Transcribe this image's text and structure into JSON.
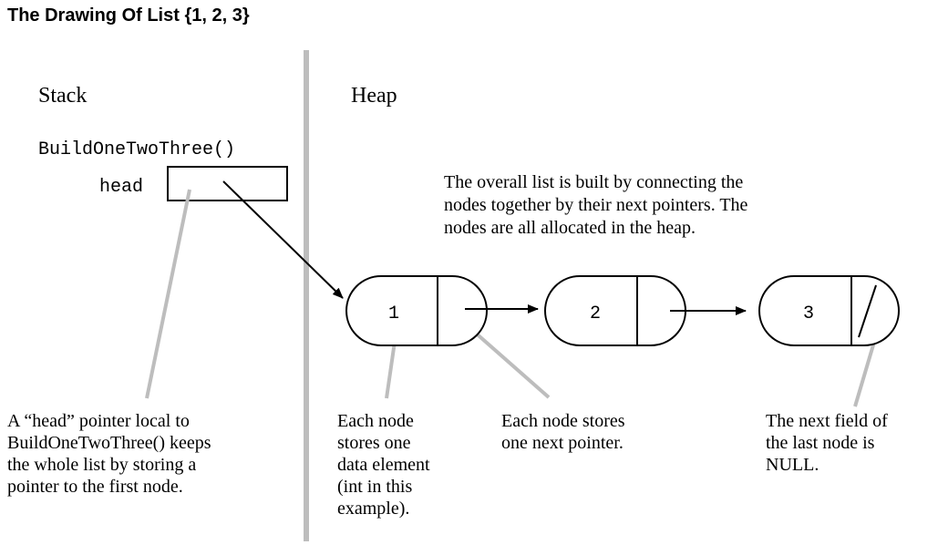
{
  "title": "The Drawing Of List {1, 2, 3}",
  "stack": {
    "label": "Stack",
    "function_name": "BuildOneTwoThree()",
    "head_label": "head"
  },
  "heap": {
    "label": "Heap",
    "description": [
      "The overall list is built by connecting the",
      "nodes together by their next pointers. The",
      "nodes are all allocated in the heap."
    ]
  },
  "nodes": [
    {
      "data": "1"
    },
    {
      "data": "2"
    },
    {
      "data": "3"
    }
  ],
  "annotations": {
    "head_pointer": [
      "A “head” pointer local to",
      "BuildOneTwoThree() keeps",
      "the whole list by storing a",
      "pointer to the first node."
    ],
    "data_element": [
      "Each node",
      "stores one",
      "data element",
      "(int in this",
      "example)."
    ],
    "next_pointer": [
      "Each node stores",
      "one next pointer."
    ],
    "null_field": [
      "The next field of",
      "the last node is",
      "NULL."
    ]
  },
  "colors": {
    "divider": "#bdbdbd",
    "leader": "#bdbdbd",
    "ink": "#000000"
  }
}
